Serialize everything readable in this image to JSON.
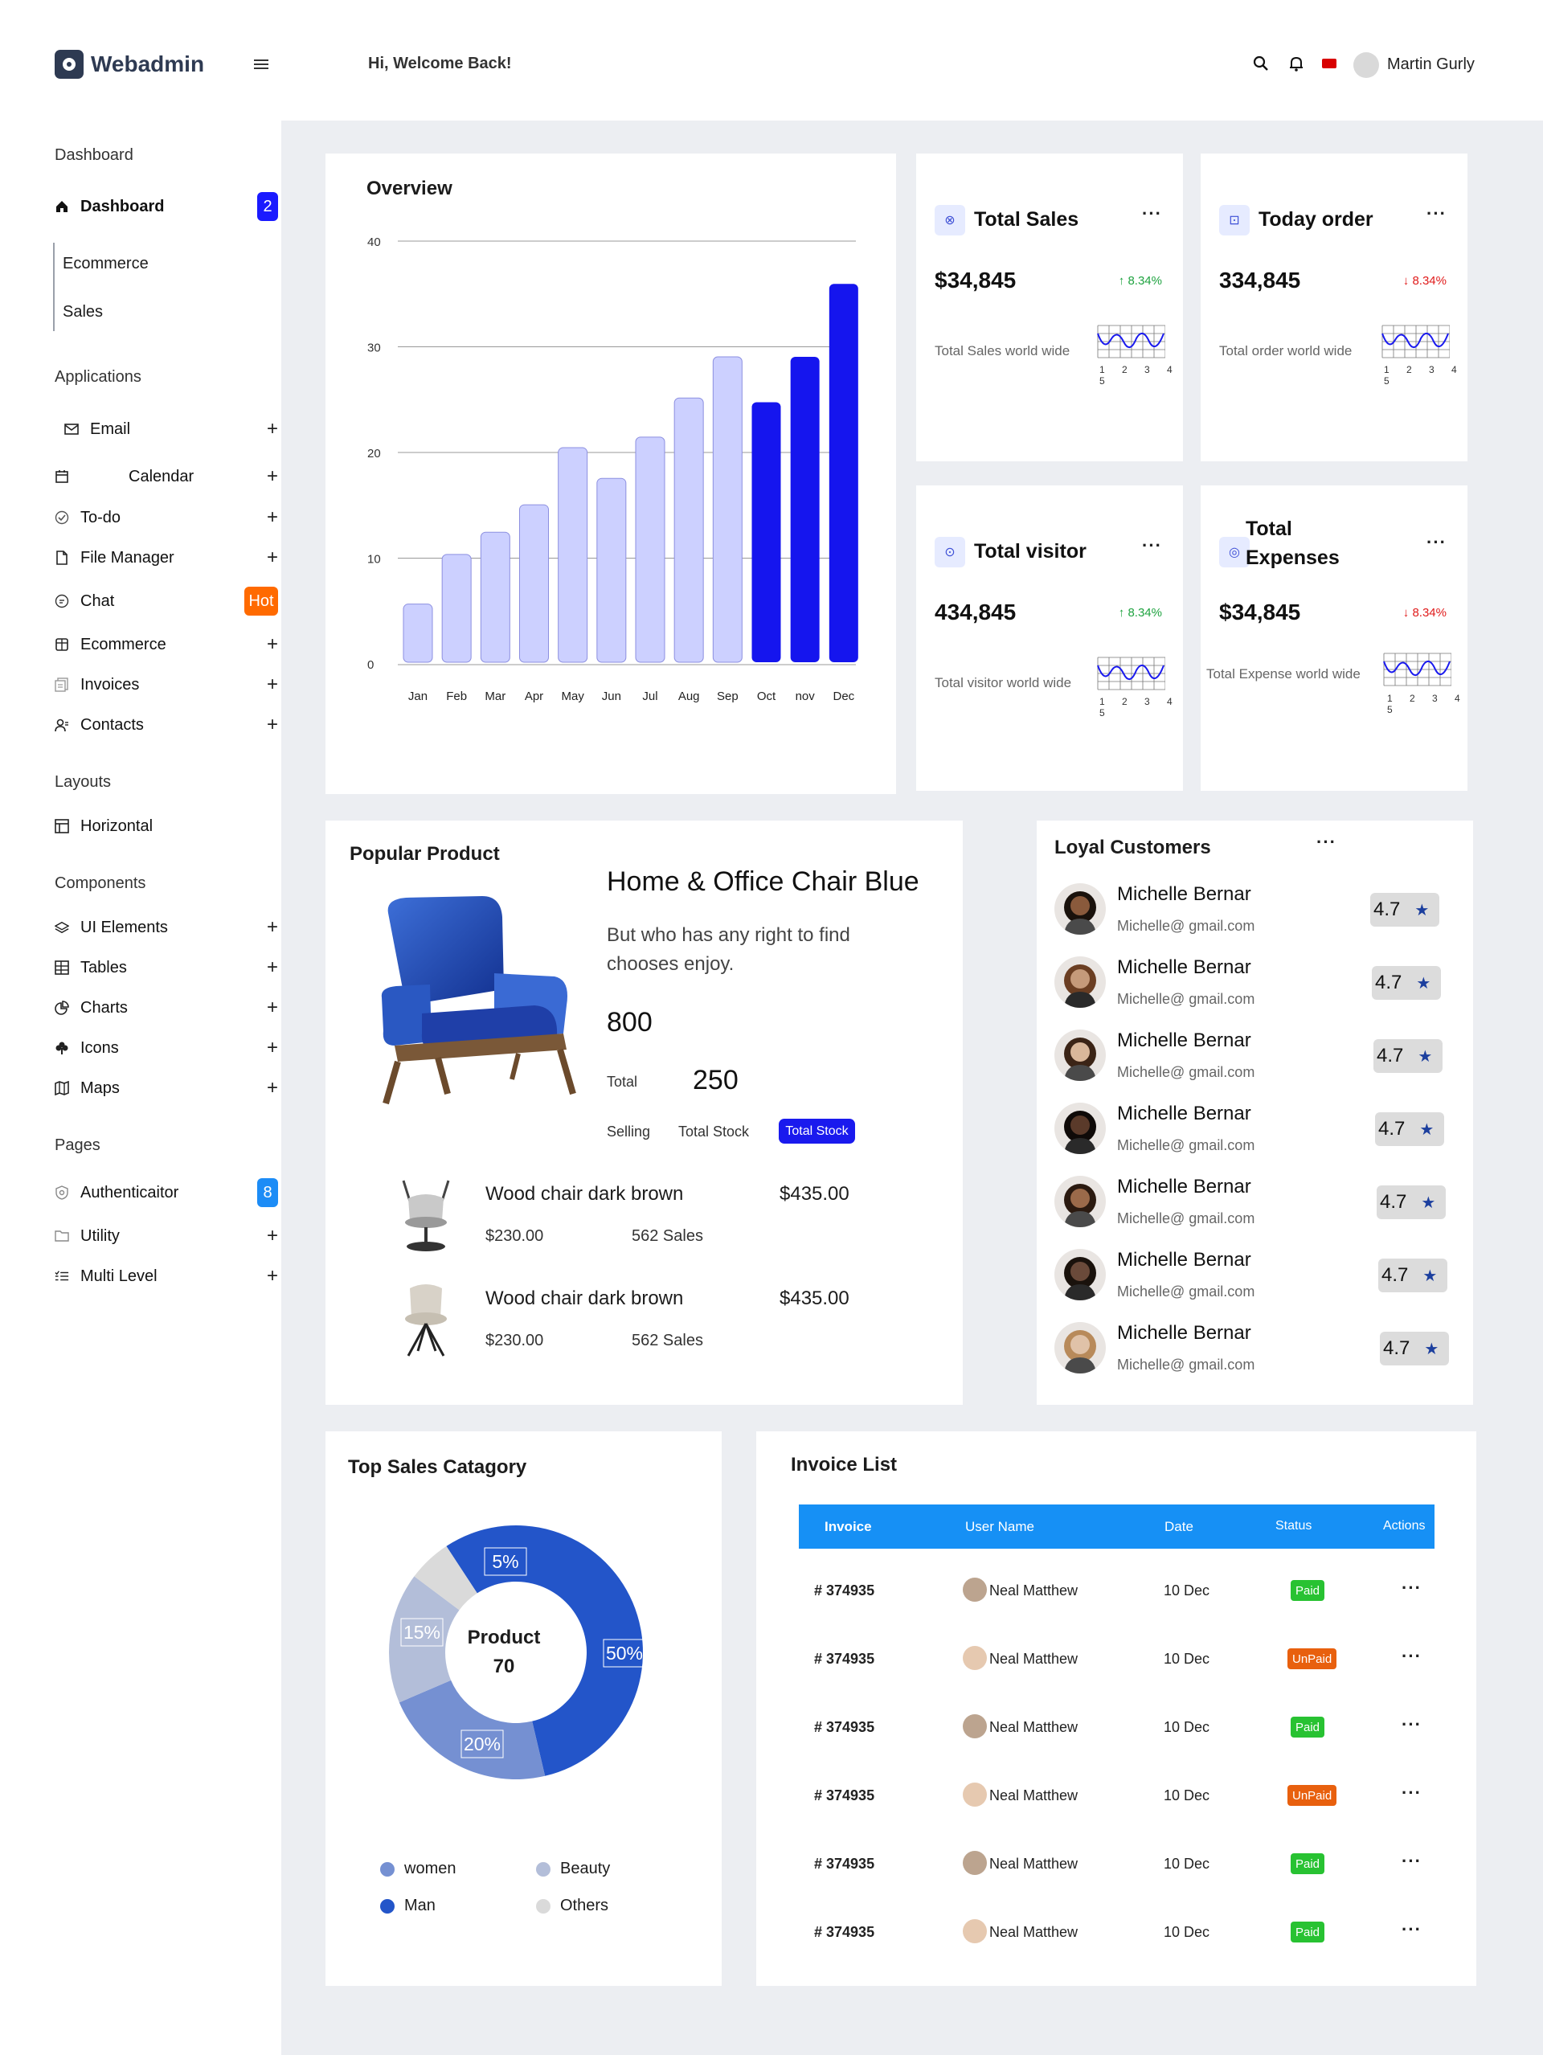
{
  "brand": {
    "name": "Webadmin"
  },
  "header": {
    "greeting": "Hi, Welcome Back!",
    "user_name": "Martin Gurly",
    "icons": [
      "menu-icon",
      "search-icon",
      "bell-icon",
      "flag-icon",
      "avatar"
    ]
  },
  "sidebar": {
    "sections": {
      "dashboard": "Dashboard",
      "applications": "Applications",
      "layouts": "Layouts",
      "components": "Components",
      "pages": "Pages"
    },
    "dashboard_item": {
      "label": "Dashboard",
      "badge": "2"
    },
    "dashboard_sub": [
      "Ecommerce",
      "Sales"
    ],
    "applications": [
      {
        "label": "Email",
        "icon": "mail-icon"
      },
      {
        "label": "Calendar",
        "icon": "calendar-icon"
      },
      {
        "label": "To-do",
        "icon": "check-circle-icon"
      },
      {
        "label": "File Manager",
        "icon": "file-icon"
      },
      {
        "label": "Chat",
        "icon": "chat-icon",
        "badge": "Hot"
      },
      {
        "label": "Ecommerce",
        "icon": "store-icon"
      },
      {
        "label": "Invoices",
        "icon": "invoice-icon"
      },
      {
        "label": "Contacts",
        "icon": "contacts-icon"
      }
    ],
    "layouts": [
      {
        "label": "Horizontal",
        "icon": "layout-icon"
      }
    ],
    "components": [
      {
        "label": "UI Elements",
        "icon": "layers-icon"
      },
      {
        "label": "Tables",
        "icon": "table-icon"
      },
      {
        "label": "Charts",
        "icon": "pie-chart-icon"
      },
      {
        "label": "Icons",
        "icon": "clover-icon"
      },
      {
        "label": "Maps",
        "icon": "map-icon"
      }
    ],
    "pages": [
      {
        "label": "Authenticaitor",
        "icon": "shield-icon",
        "badge": "8"
      },
      {
        "label": "Utility",
        "icon": "folder-icon"
      },
      {
        "label": "Multi Level",
        "icon": "list-icon"
      }
    ]
  },
  "overview": {
    "title": "Overview",
    "chart_data": {
      "type": "bar",
      "title": "Overview",
      "categories": [
        "Jan",
        "Feb",
        "Mar",
        "Apr",
        "May",
        "Jun",
        "Jul",
        "Aug",
        "Sep",
        "Oct",
        "nov",
        "Dec"
      ],
      "values": [
        5.5,
        10.2,
        12.3,
        14.9,
        20.3,
        17.4,
        21.3,
        25.0,
        28.9,
        24.6,
        28.9,
        35.8
      ],
      "highlighted": [
        false,
        false,
        false,
        false,
        false,
        false,
        false,
        false,
        false,
        true,
        true,
        true
      ],
      "yticks": [
        0,
        10,
        20,
        30,
        40
      ],
      "ylim": [
        0,
        40
      ],
      "grid": true,
      "colors": {
        "normal": "#ccd0ff",
        "highlight": "#1515ee"
      }
    }
  },
  "stats": [
    {
      "title": "Total Sales",
      "value": "$34,845",
      "change": "8.34%",
      "direction": "up",
      "sub": "Total Sales world wide",
      "icon": "sales-icon"
    },
    {
      "title": "Today order",
      "value": "334,845",
      "change": "8.34%",
      "direction": "down",
      "sub": "Total order world wide",
      "icon": "cart-icon"
    },
    {
      "title": "Total visitor",
      "value": "434,845",
      "change": "8.34%",
      "direction": "up",
      "sub": "Total visitor world wide",
      "icon": "visitor-icon"
    },
    {
      "title": "Total Expenses",
      "value": "$34,845",
      "change": "8.34%",
      "direction": "down",
      "sub": "Total Expense world wide",
      "icon": "expense-icon"
    }
  ],
  "mini_axis": "1 2 3 4 5",
  "popular": {
    "title": "Popular Product",
    "product_name": "Home & Office Chair Blue",
    "product_desc": "But who has any right to find chooses enjoy.",
    "number": "800",
    "total_label": "Total",
    "total_value": "250",
    "tabs": [
      "Selling",
      "Total Stock",
      "Total Stock"
    ],
    "items": [
      {
        "name": "Wood chair dark brown",
        "price": "$435.00",
        "old_price": "$230.00",
        "sales": "562 Sales"
      },
      {
        "name": "Wood chair dark brown",
        "price": "$435.00",
        "old_price": "$230.00",
        "sales": "562 Sales"
      }
    ]
  },
  "loyal": {
    "title": "Loyal Customers",
    "customers": [
      {
        "name": "Michelle Bernar",
        "email": "Michelle@ gmail.com",
        "rating": "4.7"
      },
      {
        "name": "Michelle Bernar",
        "email": "Michelle@ gmail.com",
        "rating": "4.7"
      },
      {
        "name": "Michelle Bernar",
        "email": "Michelle@ gmail.com",
        "rating": "4.7"
      },
      {
        "name": "Michelle Bernar",
        "email": "Michelle@ gmail.com",
        "rating": "4.7"
      },
      {
        "name": "Michelle Bernar",
        "email": "Michelle@ gmail.com",
        "rating": "4.7"
      },
      {
        "name": "Michelle Bernar",
        "email": "Michelle@ gmail.com",
        "rating": "4.7"
      },
      {
        "name": "Michelle Bernar",
        "email": "Michelle@ gmail.com",
        "rating": "4.7"
      }
    ]
  },
  "top_sales": {
    "title": "Top Sales Catagory",
    "center_label": "Product",
    "center_value": "70",
    "chart_data": {
      "type": "pie",
      "slices": [
        {
          "label": "Man",
          "value": 50,
          "text": "50%",
          "color": "#2355c9"
        },
        {
          "label": "women",
          "value": 20,
          "text": "20%",
          "color": "#7590d2"
        },
        {
          "label": "Beauty",
          "value": 15,
          "text": "15%",
          "color": "#b3bed9"
        },
        {
          "label": "Others",
          "value": 5,
          "text": "5%",
          "color": "#dadada"
        }
      ],
      "legend": [
        "women",
        "Beauty",
        "Man",
        "Others"
      ]
    }
  },
  "invoice": {
    "title": "Invoice List",
    "columns": [
      "Invoice",
      "User Name",
      "Date",
      "Status",
      "Actions"
    ],
    "rows": [
      {
        "invoice": "# 374935",
        "user": "Neal Matthew",
        "date": "10 Dec",
        "status": "Paid"
      },
      {
        "invoice": "# 374935",
        "user": "Neal Matthew",
        "date": "10 Dec",
        "status": "UnPaid"
      },
      {
        "invoice": "# 374935",
        "user": "Neal Matthew",
        "date": "10 Dec",
        "status": "Paid"
      },
      {
        "invoice": "# 374935",
        "user": "Neal Matthew",
        "date": "10 Dec",
        "status": "UnPaid"
      },
      {
        "invoice": "# 374935",
        "user": "Neal Matthew",
        "date": "10 Dec",
        "status": "Paid"
      },
      {
        "invoice": "# 374935",
        "user": "Neal Matthew",
        "date": "10 Dec",
        "status": "Paid"
      }
    ],
    "colors": {
      "header": "#1690f5",
      "paid": "#28c232",
      "unpaid": "#e8600e"
    }
  }
}
